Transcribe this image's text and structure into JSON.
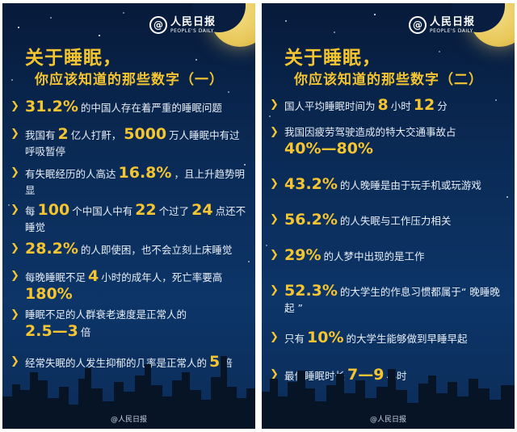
{
  "left": {
    "logo": {
      "cn": "人民日报",
      "en": "PEOPLE'S DAILY"
    },
    "title": "关于睡眠，",
    "subtitle": "你应该知道的那些数字（一）",
    "footer": "@人民日报",
    "items": [
      {
        "pre": "",
        "n1": "31.2%",
        "post": "的中国人存在着严重的睡眠问题"
      },
      {
        "pre": "我国有",
        "n1": "2",
        "mid1": "亿人打鼾，",
        "n2": "5000",
        "post": "万人睡眠中有过呼吸暂停"
      },
      {
        "pre": "有失眠经历的人高达",
        "n1": "16.8%",
        "post": "，且上升趋势明显"
      },
      {
        "pre": "每",
        "n1": "100",
        "mid1": "个中国人中有",
        "n2": "22",
        "mid2": "个过了",
        "n3": "24",
        "post": "点还不睡觉"
      },
      {
        "pre": "",
        "n1": "28.2%",
        "post": "的人即使困，也不会立刻上床睡觉"
      },
      {
        "pre": "每晚睡眠不足",
        "n1": "4",
        "mid1": "小时的成年人，死亡率要高",
        "n2": "180%",
        "post": ""
      },
      {
        "pre": "睡眠不足的人群衰老速度是正常人的",
        "n1": "2.5—3",
        "post": "倍"
      },
      {
        "pre": "经常失眠的人发生抑郁的几率是正常人的",
        "n1": "5",
        "post": "倍"
      }
    ]
  },
  "right": {
    "logo": {
      "cn": "人民日报",
      "en": "PEOPLE'S DAILY"
    },
    "title": "关于睡眠，",
    "subtitle": "你应该知道的那些数字（二）",
    "footer": "@人民日报",
    "items": [
      {
        "pre": "国人平均睡眠时间为",
        "n1": "8",
        "mid1": "小时",
        "n2": "12",
        "post": "分"
      },
      {
        "pre": "我国因疲劳驾驶造成的特大交通事故占",
        "n1": "40%—80%",
        "post": ""
      },
      {
        "pre": "",
        "n1": "43.2%",
        "post": "的人晚睡是由于玩手机或玩游戏"
      },
      {
        "pre": "",
        "n1": "56.2%",
        "post": "的人失眠与工作压力相关"
      },
      {
        "pre": "",
        "n1": "29%",
        "post": "的人梦中出现的是工作"
      },
      {
        "pre": "",
        "n1": "52.3%",
        "post": "的大学生的作息习惯都属于“ 晚睡晚起 ”"
      },
      {
        "pre": "只有",
        "n1": "10%",
        "post": "的大学生能够做到早睡早起"
      },
      {
        "pre": "最佳睡眠时长",
        "n1": "7—9",
        "post": "小时"
      }
    ]
  }
}
